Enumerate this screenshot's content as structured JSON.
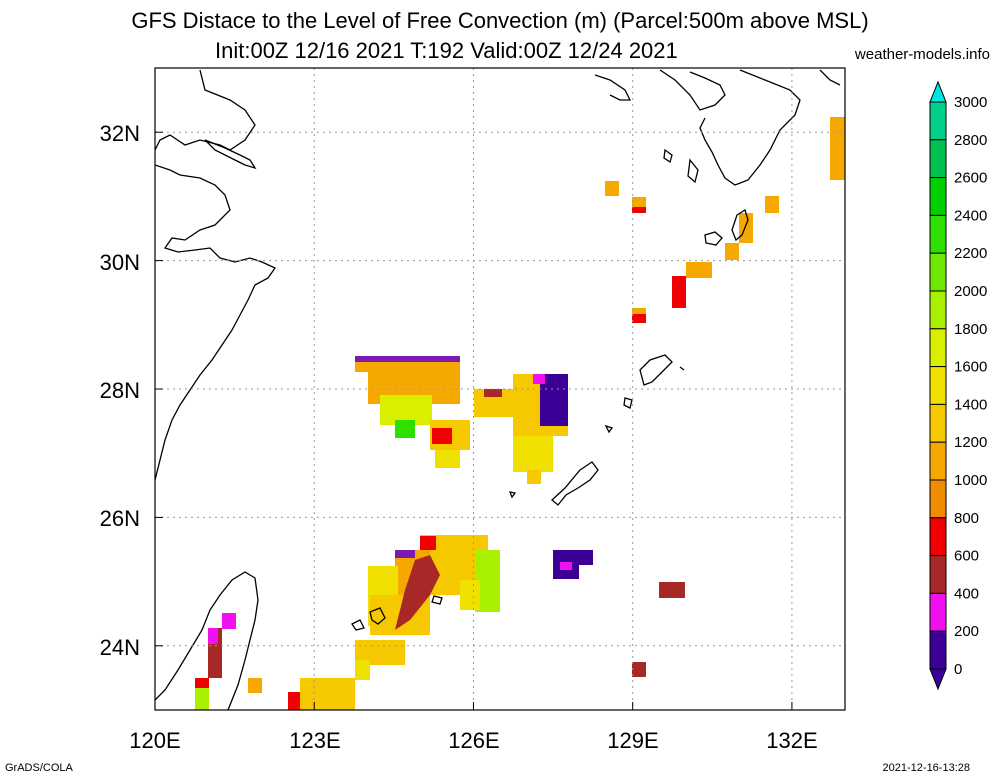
{
  "header": {
    "title_line1": "GFS Distace to the Level of Free Convection (m) (Parcel:500m above MSL)",
    "title_line2": "Init:00Z 12/16 2021 T:192 Valid:00Z 12/24 2021",
    "site": "weather-models.info"
  },
  "footer": {
    "left": "GrADS/COLA",
    "right": "2021-12-16-13:28"
  },
  "map": {
    "lon_labels": [
      "120E",
      "123E",
      "126E",
      "129E",
      "132E"
    ],
    "lat_labels": [
      "32N",
      "30N",
      "28N",
      "26N",
      "24N"
    ],
    "lon_ticks": [
      120,
      123,
      126,
      129,
      132
    ],
    "lat_ticks": [
      32,
      30,
      28,
      26,
      24
    ],
    "lon_range": [
      120,
      133
    ],
    "lat_range": [
      23,
      33
    ],
    "grid": "dotted",
    "colors": {
      "coast": "#000000",
      "grid": "#999999"
    }
  },
  "colorbar": {
    "labels": [
      "3000",
      "2800",
      "2600",
      "2400",
      "2200",
      "2000",
      "1800",
      "1600",
      "1400",
      "1200",
      "1000",
      "800",
      "600",
      "400",
      "200",
      "0"
    ],
    "colors": [
      "#00e5e0",
      "#00d08c",
      "#00c050",
      "#00d000",
      "#2ee000",
      "#6ee800",
      "#a8f000",
      "#d8f000",
      "#f0e000",
      "#f5c800",
      "#f5a800",
      "#f08c00",
      "#f00000",
      "#a82828",
      "#f010f0",
      "#3c0096"
    ],
    "range": [
      0,
      3000
    ]
  },
  "fields": [
    {
      "id": "blob-okinawa-north",
      "lon": 124.6,
      "lat": 28.0,
      "value": 1100
    },
    {
      "id": "blob-amami-west",
      "lon": 126.8,
      "lat": 27.7,
      "value": 1200
    },
    {
      "id": "blob-amami-purple",
      "lon": 127.5,
      "lat": 27.8,
      "value": 0
    },
    {
      "id": "blob-yaeyama",
      "lon": 125.0,
      "lat": 25.2,
      "value": 400
    },
    {
      "id": "blob-miyako",
      "lon": 125.9,
      "lat": 25.4,
      "value": 1200
    },
    {
      "id": "blob-daito",
      "lon": 127.8,
      "lat": 25.2,
      "value": 0
    },
    {
      "id": "blob-taiwan-ne",
      "lon": 123.5,
      "lat": 23.5,
      "value": 1000
    }
  ]
}
